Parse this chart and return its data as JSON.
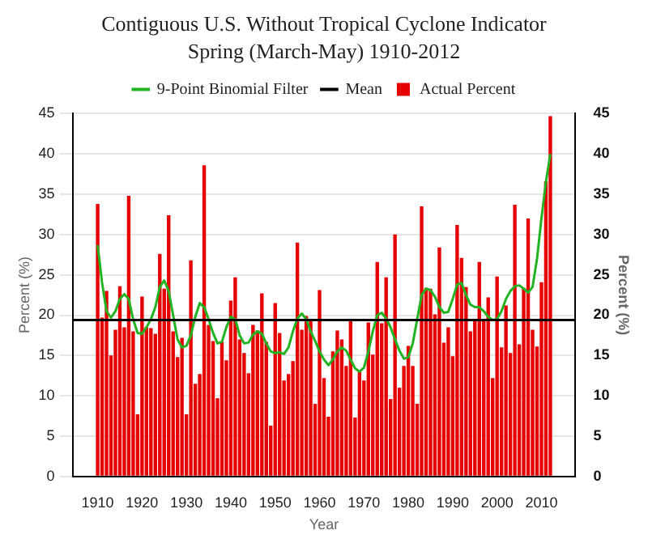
{
  "chart_data": {
    "type": "bar",
    "title": "Contiguous U.S. Without Tropical Cyclone Indicator",
    "subtitle": "Spring (March-May) 1910-2012",
    "xlabel": "Year",
    "ylabel": "Percent (%)",
    "y2label": "Percent (%)",
    "x": [
      1910,
      1911,
      1912,
      1913,
      1914,
      1915,
      1916,
      1917,
      1918,
      1919,
      1920,
      1921,
      1922,
      1923,
      1924,
      1925,
      1926,
      1927,
      1928,
      1929,
      1930,
      1931,
      1932,
      1933,
      1934,
      1935,
      1936,
      1937,
      1938,
      1939,
      1940,
      1941,
      1942,
      1943,
      1944,
      1945,
      1946,
      1947,
      1948,
      1949,
      1950,
      1951,
      1952,
      1953,
      1954,
      1955,
      1956,
      1957,
      1958,
      1959,
      1960,
      1961,
      1962,
      1963,
      1964,
      1965,
      1966,
      1967,
      1968,
      1969,
      1970,
      1971,
      1972,
      1973,
      1974,
      1975,
      1976,
      1977,
      1978,
      1979,
      1980,
      1981,
      1982,
      1983,
      1984,
      1985,
      1986,
      1987,
      1988,
      1989,
      1990,
      1991,
      1992,
      1993,
      1994,
      1995,
      1996,
      1997,
      1998,
      1999,
      2000,
      2001,
      2002,
      2003,
      2004,
      2005,
      2006,
      2007,
      2008,
      2009,
      2010,
      2011,
      2012
    ],
    "series": [
      {
        "name": "9-Point Binomial Filter",
        "type": "line",
        "color": "#22b322",
        "values": [
          28.7,
          24.0,
          20.5,
          19.7,
          20.5,
          22.0,
          22.6,
          22.0,
          19.5,
          17.8,
          17.7,
          18.5,
          19.5,
          21.0,
          23.5,
          24.3,
          23.0,
          20.0,
          17.0,
          16.0,
          16.2,
          17.5,
          19.8,
          21.5,
          21.0,
          19.5,
          17.8,
          16.5,
          16.7,
          18.5,
          19.8,
          19.5,
          17.5,
          16.5,
          16.6,
          17.6,
          18.0,
          17.7,
          16.5,
          15.5,
          15.3,
          15.4,
          15.2,
          16.0,
          18.0,
          19.6,
          20.2,
          19.5,
          18.0,
          16.8,
          15.5,
          14.5,
          13.8,
          14.5,
          15.5,
          16.0,
          15.6,
          14.5,
          13.4,
          13.0,
          13.5,
          15.5,
          18.0,
          20.0,
          20.3,
          19.6,
          18.5,
          17.0,
          15.6,
          14.6,
          14.8,
          16.5,
          19.5,
          22.5,
          23.3,
          23.1,
          22.3,
          21.0,
          20.3,
          20.4,
          22.0,
          23.8,
          24.0,
          22.5,
          21.3,
          21.0,
          21.0,
          20.5,
          19.8,
          19.4,
          19.5,
          20.5,
          22.0,
          23.0,
          23.6,
          23.7,
          23.3,
          22.8,
          23.5,
          27.0,
          32.0,
          36.5,
          40.0
        ]
      },
      {
        "name": "Actual Percent",
        "color": "#e60000",
        "values": [
          33.8,
          19.7,
          23.0,
          15.0,
          18.2,
          23.6,
          18.5,
          34.8,
          18.0,
          7.7,
          22.3,
          18.5,
          18.4,
          17.7,
          27.6,
          23.3,
          32.4,
          18.0,
          14.8,
          17.2,
          7.7,
          26.8,
          11.5,
          12.7,
          38.6,
          18.8,
          16.8,
          9.7,
          16.7,
          14.4,
          21.8,
          24.7,
          17.0,
          15.3,
          12.8,
          18.8,
          18.1,
          22.7,
          16.7,
          6.3,
          21.5,
          17.8,
          11.9,
          12.7,
          14.3,
          29.0,
          18.2,
          19.9,
          19.5,
          9.0,
          23.1,
          12.2,
          7.4,
          15.5,
          18.1,
          17.0,
          13.7,
          19.5,
          7.3,
          13.1,
          11.9,
          19.1,
          15.1,
          26.6,
          19.0,
          24.7,
          9.6,
          30.0,
          11.0,
          13.7,
          16.2,
          13.7,
          9.0,
          33.5,
          23.4,
          23.3,
          20.1,
          28.4,
          16.6,
          18.5,
          14.9,
          31.2,
          27.1,
          23.5,
          18.0,
          19.3,
          26.6,
          19.5,
          22.2,
          12.2,
          24.8,
          16.0,
          21.2,
          15.3,
          33.7,
          16.4,
          23.4,
          32.0,
          18.2,
          16.1,
          24.1,
          36.6,
          44.7
        ]
      }
    ],
    "ref_lines": [
      {
        "axis": "y",
        "value": 19.4,
        "label": "Mean",
        "color": "#000000"
      }
    ],
    "xlim": [
      1909.5,
      2012.5
    ],
    "xticks": [
      1910,
      1920,
      1930,
      1940,
      1950,
      1960,
      1970,
      1980,
      1990,
      2000,
      2010
    ],
    "ylim": [
      0,
      45
    ],
    "yticks": [
      0,
      5,
      10,
      15,
      20,
      25,
      30,
      35,
      40,
      45
    ],
    "y2lim": [
      0,
      45
    ],
    "y2ticks": [
      0,
      5,
      10,
      15,
      20,
      25,
      30,
      35,
      40,
      45
    ],
    "grid": "y",
    "legend": "top"
  }
}
